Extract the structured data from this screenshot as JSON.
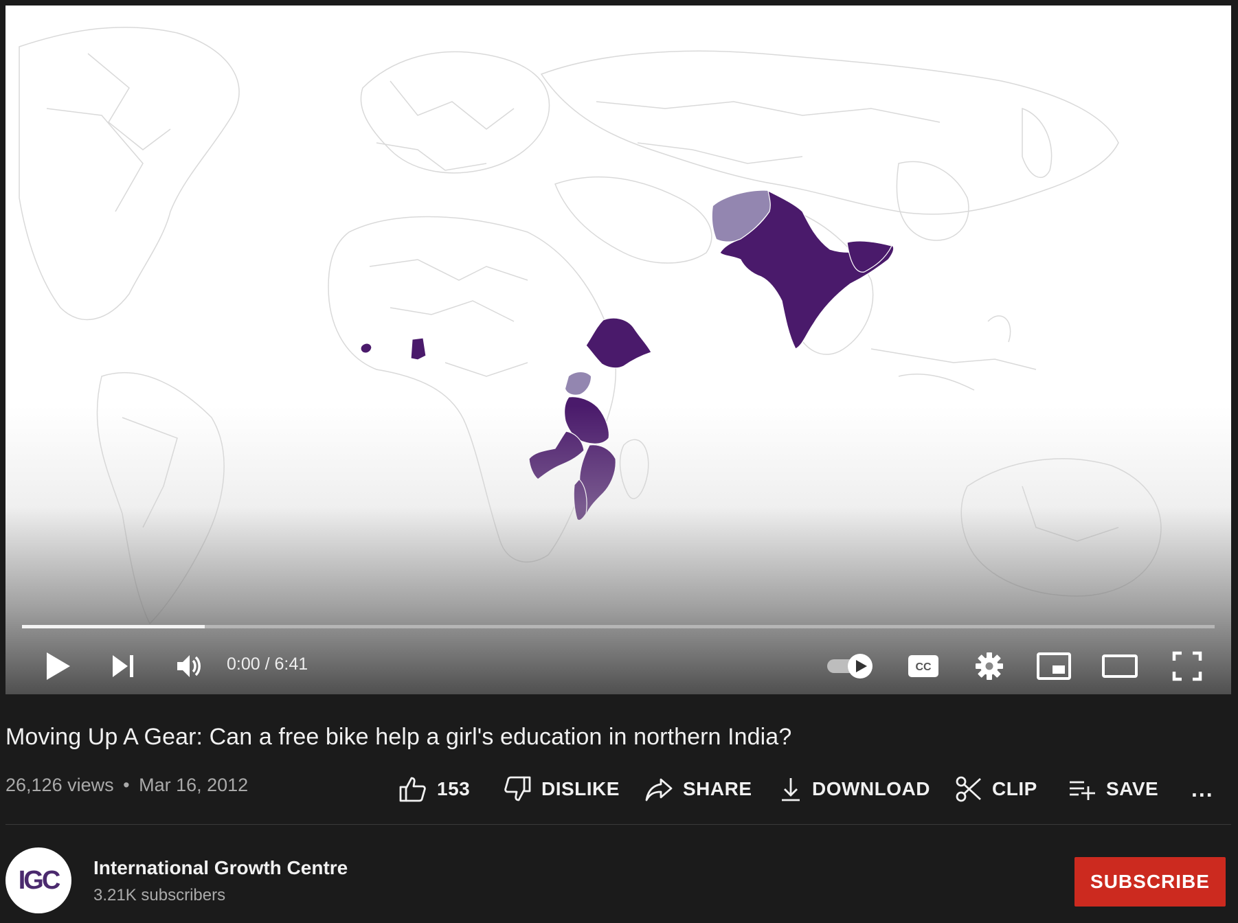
{
  "player": {
    "time_display": "0:00 / 6:41",
    "progress_loaded_fraction": 0.153,
    "progress_played_fraction": 0.0,
    "controls": [
      "play-icon",
      "next-icon",
      "volume-icon",
      "autoplay-toggle-icon",
      "cc-icon",
      "settings-icon",
      "miniplayer-icon",
      "theater-icon",
      "fullscreen-icon"
    ],
    "colors": {
      "highlight_dark": "#4a1a6b",
      "highlight_light": "#9386b0",
      "map_outline": "#d8d8d8"
    }
  },
  "video": {
    "title": "Moving Up A Gear: Can a free bike help a girl's education in northern India?",
    "views": "26,126 views",
    "separator": "•",
    "date": "Mar 16, 2012"
  },
  "actions": {
    "like_count": "153",
    "dislike_label": "DISLIKE",
    "share_label": "SHARE",
    "download_label": "DOWNLOAD",
    "clip_label": "CLIP",
    "save_label": "SAVE",
    "more_label": "..."
  },
  "channel": {
    "avatar_text": "IGC",
    "name": "International Growth Centre",
    "subscribers": "3.21K subscribers",
    "subscribe_label": "SUBSCRIBE"
  }
}
